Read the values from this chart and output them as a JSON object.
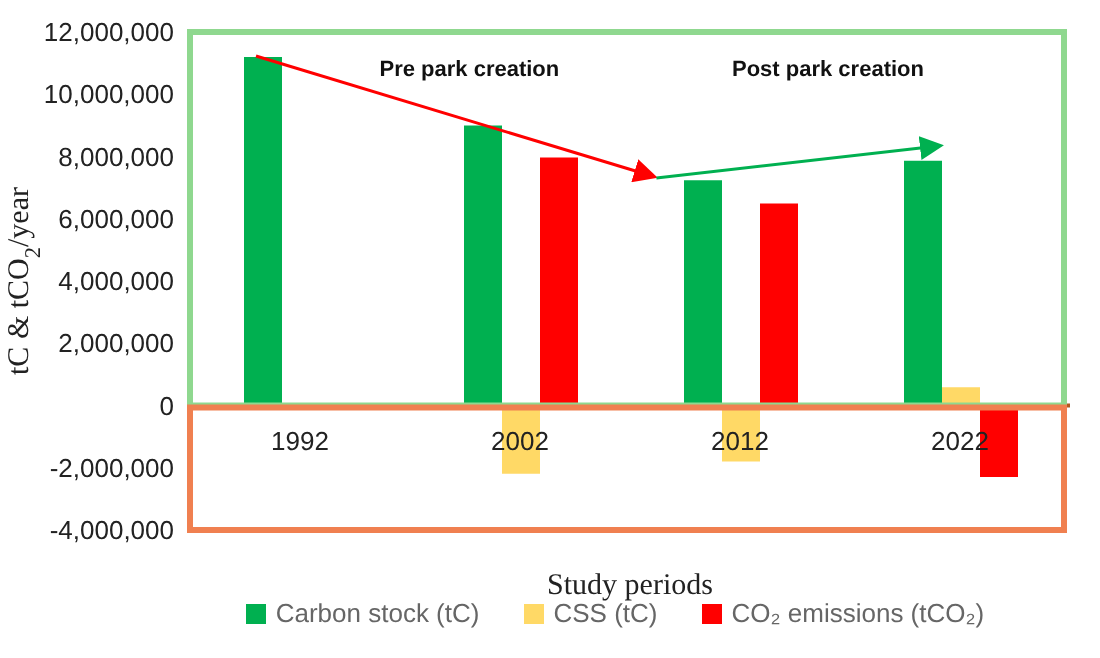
{
  "chart_data": {
    "type": "bar",
    "xlabel": "Study periods",
    "ylabel": "tC & tCO$_{2}$/year",
    "categories": [
      "1992",
      "2002",
      "2012",
      "2022"
    ],
    "series": [
      {
        "name": "Carbon stock (tC)",
        "color": "#00b050",
        "values": [
          11200000,
          9000000,
          7240000,
          7860000
        ]
      },
      {
        "name": "CSS (tC)",
        "color": "#ffd966",
        "values": [
          null,
          -2190000,
          -1800000,
          590000
        ]
      },
      {
        "name": "CO₂ emissions (tCO₂)",
        "color": "#ff0000",
        "values": [
          null,
          7970000,
          6490000,
          -2300000
        ]
      }
    ],
    "ylim": [
      -4000000,
      12000000
    ],
    "yticks": [
      {
        "value": -4000000,
        "label": "-4,000,000"
      },
      {
        "value": -2000000,
        "label": "-2,000,000"
      },
      0,
      {
        "value": 2000000,
        "label": "2,000,000"
      },
      {
        "value": 4000000,
        "label": "4,000,000"
      },
      {
        "value": 6000000,
        "label": "6,000,000"
      },
      {
        "value": 8000000,
        "label": "8,000,000"
      },
      {
        "value": 10000000,
        "label": "10,000,000"
      },
      {
        "value": 12000000,
        "label": "12,000,000"
      }
    ],
    "legend": "bottom",
    "annotations": [
      "Pre park creation",
      "Post park creation"
    ]
  }
}
